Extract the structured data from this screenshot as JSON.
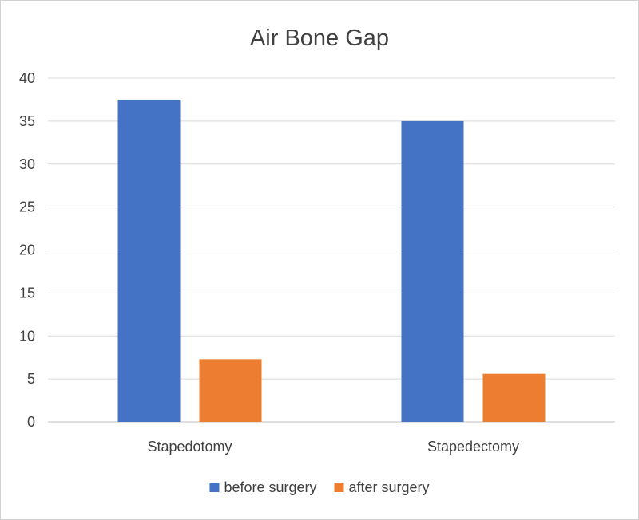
{
  "chart_data": {
    "type": "bar",
    "title": "Air Bone Gap",
    "categories": [
      "Stapedotomy",
      "Stapedectomy"
    ],
    "series": [
      {
        "name": "before surgery",
        "color": "#4472C4",
        "values": [
          37.5,
          35
        ]
      },
      {
        "name": "after surgery",
        "color": "#ED7D31",
        "values": [
          7.3,
          5.6
        ]
      }
    ],
    "xlabel": "",
    "ylabel": "",
    "ylim": [
      0,
      40
    ],
    "yticks": [
      0,
      5,
      10,
      15,
      20,
      25,
      30,
      35,
      40
    ],
    "grid": true,
    "legend": "bottom"
  }
}
